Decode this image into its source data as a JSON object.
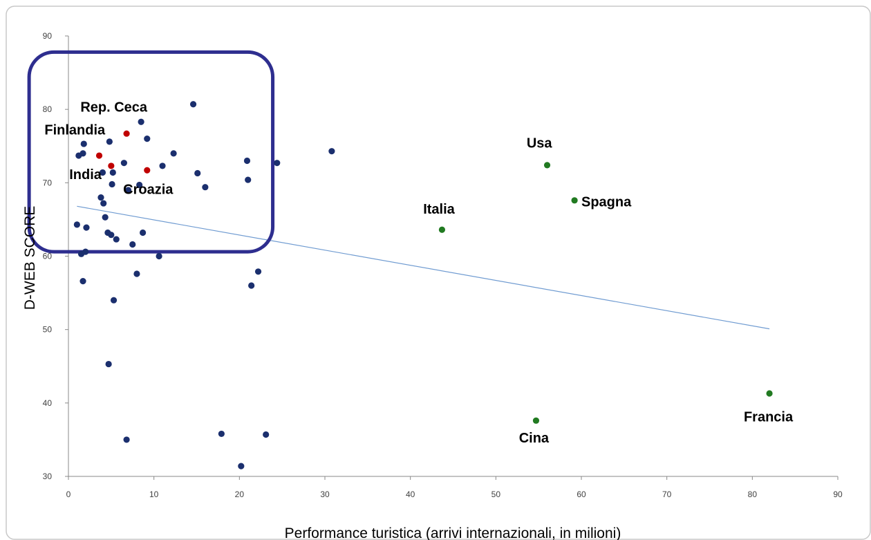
{
  "chart_data": {
    "type": "scatter",
    "title": "",
    "xlabel": "Performance turistica (arrivi internazionali, in milioni)",
    "ylabel": "D-WEB SCORE",
    "xlim": [
      0,
      90
    ],
    "ylim": [
      30,
      90
    ],
    "xticks": [
      0,
      10,
      20,
      30,
      40,
      50,
      60,
      70,
      80,
      90
    ],
    "yticks": [
      30,
      40,
      50,
      60,
      70,
      80,
      90
    ],
    "grid": false,
    "legend": "none",
    "colors": {
      "other": "#1b2f6e",
      "highlight_small": "#c00000",
      "highlight_large": "#217a21",
      "trendline": "#6f9bd1",
      "selection_box": "#2e2e8f"
    },
    "series": [
      {
        "color_key": "other",
        "points": [
          [
            1.0,
            64.3
          ],
          [
            1.2,
            73.7
          ],
          [
            1.5,
            60.3
          ],
          [
            1.7,
            56.6
          ],
          [
            1.7,
            74.0
          ],
          [
            1.8,
            75.3
          ],
          [
            2.0,
            60.6
          ],
          [
            2.1,
            63.9
          ],
          [
            3.8,
            68.0
          ],
          [
            4.0,
            71.4
          ],
          [
            4.1,
            67.2
          ],
          [
            4.3,
            65.3
          ],
          [
            4.6,
            63.2
          ],
          [
            4.7,
            45.3
          ],
          [
            4.8,
            75.6
          ],
          [
            5.0,
            62.9
          ],
          [
            5.1,
            69.8
          ],
          [
            5.2,
            71.4
          ],
          [
            5.3,
            54.0
          ],
          [
            5.6,
            62.3
          ],
          [
            6.5,
            72.7
          ],
          [
            6.8,
            35.0
          ],
          [
            7.0,
            69.0
          ],
          [
            7.5,
            61.6
          ],
          [
            8.0,
            57.6
          ],
          [
            8.3,
            69.7
          ],
          [
            8.5,
            78.3
          ],
          [
            8.7,
            63.2
          ],
          [
            9.2,
            76.0
          ],
          [
            10.6,
            60.0
          ],
          [
            11.0,
            72.3
          ],
          [
            12.3,
            74.0
          ],
          [
            14.6,
            80.7
          ],
          [
            15.1,
            71.3
          ],
          [
            16.0,
            69.4
          ],
          [
            17.9,
            35.8
          ],
          [
            20.2,
            31.4
          ],
          [
            20.9,
            73.0
          ],
          [
            21.0,
            70.4
          ],
          [
            21.4,
            56.0
          ],
          [
            22.2,
            57.9
          ],
          [
            23.1,
            35.7
          ],
          [
            24.4,
            72.7
          ],
          [
            30.8,
            74.3
          ]
        ]
      },
      {
        "color_key": "highlight_small",
        "points": [
          [
            3.6,
            73.7
          ],
          [
            5.0,
            72.3
          ],
          [
            6.8,
            76.7
          ],
          [
            9.2,
            71.7
          ]
        ]
      },
      {
        "color_key": "highlight_large",
        "points": [
          [
            43.7,
            63.6
          ],
          [
            54.7,
            37.6
          ],
          [
            56.0,
            72.4
          ],
          [
            59.2,
            67.6
          ],
          [
            82.0,
            41.3
          ]
        ]
      }
    ],
    "trendline": {
      "x": [
        1.0,
        82.0
      ],
      "y": [
        66.8,
        50.1
      ]
    },
    "selection_box": {
      "x": [
        -4.6,
        23.9
      ],
      "y": [
        60.6,
        87.8
      ]
    },
    "annotations": [
      {
        "text": "Rep. Ceca",
        "x": 1.4,
        "y": 79.7
      },
      {
        "text": "Finlandia",
        "x": -2.8,
        "y": 76.6
      },
      {
        "text": "India",
        "x": 0.1,
        "y": 70.5
      },
      {
        "text": "Croazia",
        "x": 6.4,
        "y": 68.5
      },
      {
        "text": "Usa",
        "x": 53.6,
        "y": 74.8
      },
      {
        "text": "Italia",
        "x": 41.5,
        "y": 65.8
      },
      {
        "text": "Spagna",
        "x": 60.0,
        "y": 66.8
      },
      {
        "text": "Francia",
        "x": 79.0,
        "y": 37.5
      },
      {
        "text": "Cina",
        "x": 52.7,
        "y": 34.6
      }
    ]
  }
}
